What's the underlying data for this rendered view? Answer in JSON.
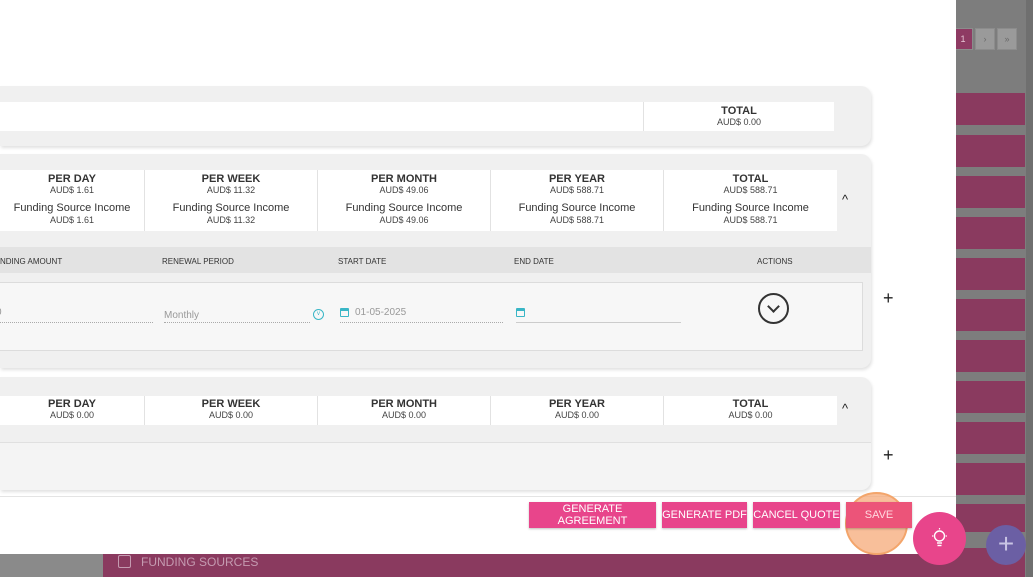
{
  "pagination": {
    "current": "1",
    "next": "›",
    "last": "»"
  },
  "summary_total": {
    "label": "TOTAL",
    "value": "AUD$ 0.00"
  },
  "funding_card": {
    "stats": [
      {
        "label": "PER DAY",
        "value": "AUD$ 1.61",
        "fs_label": "Funding Source Income",
        "fs_value": "AUD$ 1.61"
      },
      {
        "label": "PER WEEK",
        "value": "AUD$ 11.32",
        "fs_label": "Funding Source Income",
        "fs_value": "AUD$ 11.32"
      },
      {
        "label": "PER MONTH",
        "value": "AUD$ 49.06",
        "fs_label": "Funding Source Income",
        "fs_value": "AUD$ 49.06"
      },
      {
        "label": "PER YEAR",
        "value": "AUD$ 588.71",
        "fs_label": "Funding Source Income",
        "fs_value": "AUD$ 588.71"
      },
      {
        "label": "TOTAL",
        "value": "AUD$ 588.71",
        "fs_label": "Funding Source Income",
        "fs_value": "AUD$ 588.71"
      }
    ],
    "columns": {
      "funding_amount": "NDING AMOUNT",
      "renewal_period": "RENEWAL PERIOD",
      "start_date": "START DATE",
      "end_date": "END DATE",
      "actions": "ACTIONS"
    },
    "row": {
      "amount": "0",
      "renewal_period": "Monthly",
      "renewal_icon": "v",
      "start_date": "01-05-2025",
      "end_date": ""
    }
  },
  "second_card": {
    "stats": [
      {
        "label": "PER DAY",
        "value": "AUD$ 0.00"
      },
      {
        "label": "PER WEEK",
        "value": "AUD$ 0.00"
      },
      {
        "label": "PER MONTH",
        "value": "AUD$ 0.00"
      },
      {
        "label": "PER YEAR",
        "value": "AUD$ 0.00"
      },
      {
        "label": "TOTAL",
        "value": "AUD$ 0.00"
      }
    ]
  },
  "icons": {
    "chevron": "^",
    "plus": "+",
    "fab_plus": "+"
  },
  "buttons": {
    "generate_agreement": "GENERATE AGREEMENT",
    "generate_pdf": "GENERATE PDF",
    "cancel_quote": "CANCEL QUOTE",
    "save": "SAVE"
  },
  "background": {
    "section_label": "FUNDING SOURCES"
  },
  "colors": {
    "accent": "#e8458b",
    "cyan": "#39b6c6",
    "fab_purple": "#6b5fa4",
    "bg_magenta": "#8a3a5f"
  }
}
